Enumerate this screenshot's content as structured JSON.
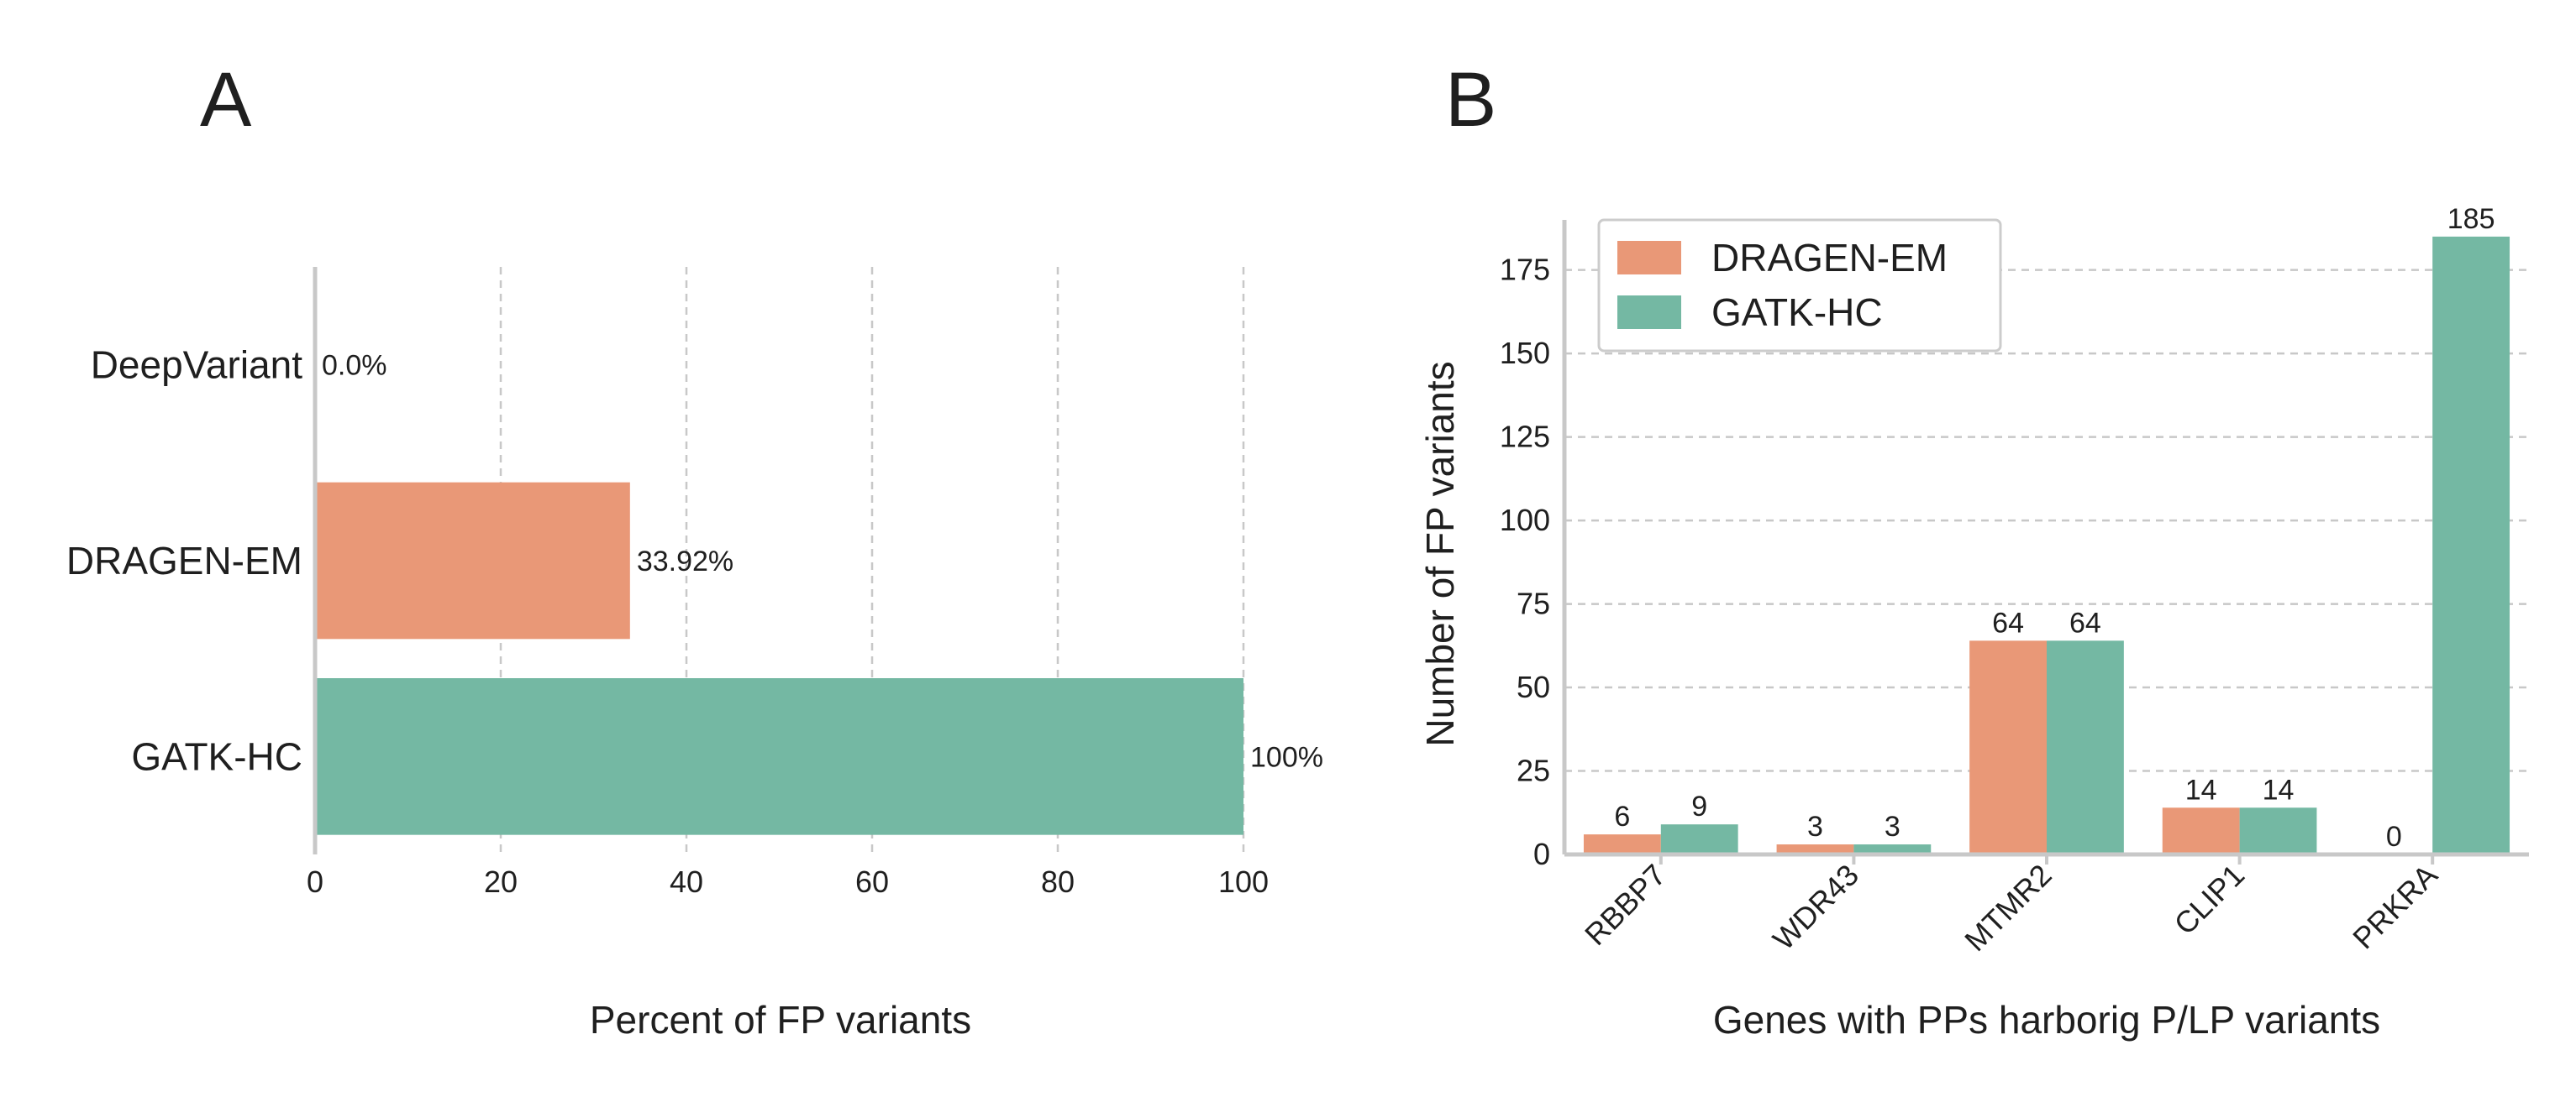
{
  "panels": {
    "a_letter": "A",
    "b_letter": "B"
  },
  "colors": {
    "dragen": "#E99877",
    "gatk": "#74B8A3"
  },
  "chart_data": [
    {
      "id": "A",
      "type": "bar",
      "orientation": "horizontal",
      "categories": [
        "DeepVariant",
        "DRAGEN-EM",
        "GATK-HC"
      ],
      "values": [
        0.0,
        33.92,
        100
      ],
      "value_labels": [
        "0.0%",
        "33.92%",
        "100%"
      ],
      "bar_colors": [
        "#E99877",
        "#E99877",
        "#74B8A3"
      ],
      "xlabel": "Percent of FP variants",
      "xlim": [
        0,
        100
      ],
      "xticks": [
        0,
        20,
        40,
        60,
        80,
        100
      ],
      "grid": "vertical dashed"
    },
    {
      "id": "B",
      "type": "bar",
      "orientation": "vertical",
      "categories": [
        "RBBP7",
        "WDR43",
        "MTMR2",
        "CLIP1",
        "PRKRA"
      ],
      "series": [
        {
          "name": "DRAGEN-EM",
          "color": "#E99877",
          "values": [
            6,
            3,
            64,
            14,
            0
          ]
        },
        {
          "name": "GATK-HC",
          "color": "#74B8A3",
          "values": [
            9,
            3,
            64,
            14,
            185
          ]
        }
      ],
      "xlabel": "Genes with PPs harborig P/LP variants",
      "ylabel": "Number of FP variants",
      "ylim": [
        0,
        190
      ],
      "yticks": [
        0,
        25,
        50,
        75,
        100,
        125,
        150,
        175
      ],
      "legend": "top-left",
      "grid": "horizontal dashed"
    }
  ]
}
